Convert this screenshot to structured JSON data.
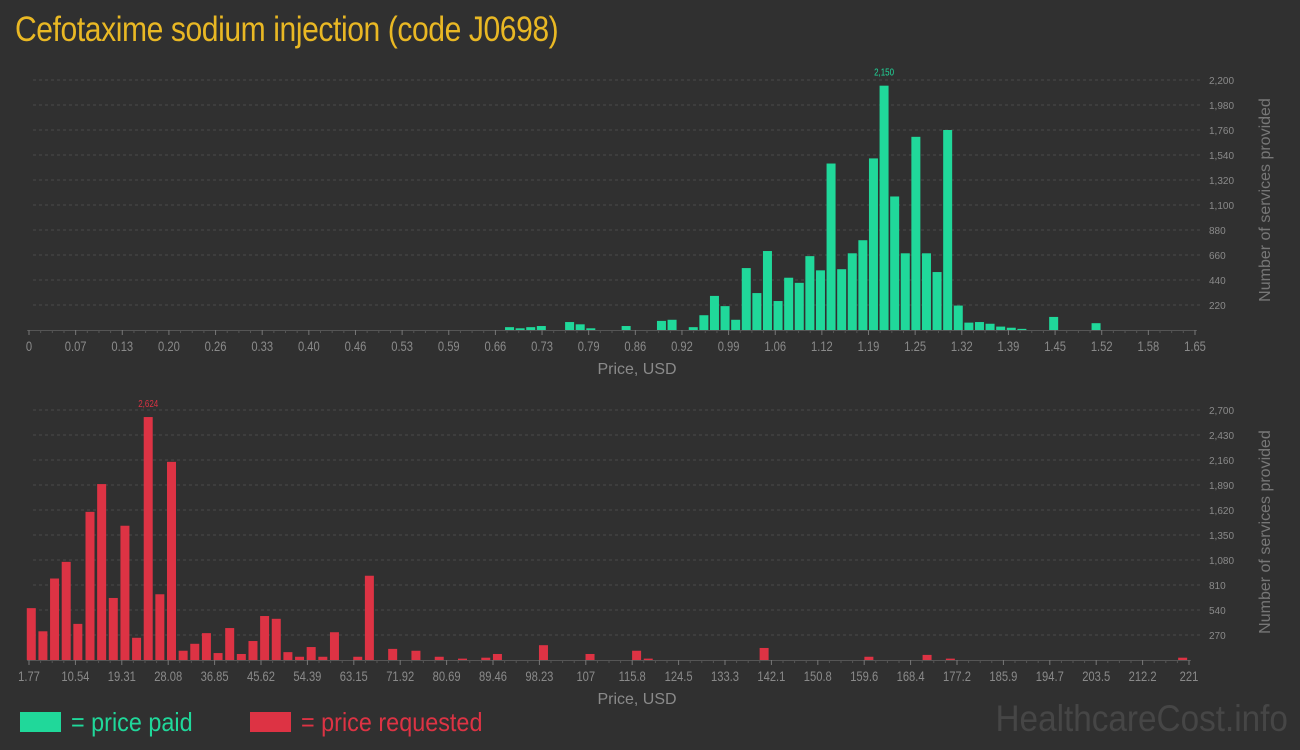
{
  "page": {
    "title": "Cefotaxime sodium injection (code J0698)",
    "watermark": "HealthcareCost.info"
  },
  "legend": {
    "paid": {
      "label": "= price paid",
      "color": "#20d89a"
    },
    "requested": {
      "label": "= price requested",
      "color": "#dd3344"
    }
  },
  "chart_data": [
    {
      "type": "bar",
      "title": "Price paid distribution",
      "xlabel": "Price, USD",
      "ylabel": "Number of services provided",
      "color": "#20d89a",
      "x_tick_labels": [
        "0",
        "0.07",
        "0.13",
        "0.20",
        "0.26",
        "0.33",
        "0.40",
        "0.46",
        "0.53",
        "0.59",
        "0.66",
        "0.73",
        "0.79",
        "0.86",
        "0.92",
        "0.99",
        "1.06",
        "1.12",
        "1.19",
        "1.25",
        "1.32",
        "1.39",
        "1.45",
        "1.52",
        "1.58",
        "1.65"
      ],
      "y_tick_labels": [
        "220",
        "440",
        "660",
        "880",
        "1,100",
        "1,320",
        "1,540",
        "1,760",
        "1,980",
        "2,200"
      ],
      "ylim": [
        0,
        2200
      ],
      "xlim": [
        0,
        1.65
      ],
      "grid": true,
      "peak_label": "2,150",
      "x": [
        0.68,
        0.695,
        0.71,
        0.725,
        0.765,
        0.78,
        0.795,
        0.845,
        0.895,
        0.91,
        0.94,
        0.955,
        0.97,
        0.985,
        1.0,
        1.015,
        1.03,
        1.045,
        1.06,
        1.075,
        1.09,
        1.105,
        1.12,
        1.135,
        1.15,
        1.165,
        1.18,
        1.195,
        1.21,
        1.225,
        1.24,
        1.255,
        1.27,
        1.285,
        1.3,
        1.315,
        1.33,
        1.345,
        1.36,
        1.375,
        1.39,
        1.405,
        1.42,
        1.45,
        1.51
      ],
      "values": [
        25,
        15,
        25,
        35,
        70,
        50,
        15,
        35,
        80,
        90,
        25,
        130,
        300,
        210,
        90,
        545,
        325,
        695,
        255,
        460,
        415,
        650,
        525,
        1465,
        535,
        675,
        790,
        1510,
        2150,
        1175,
        675,
        1700,
        675,
        510,
        1760,
        215,
        65,
        70,
        55,
        30,
        20,
        10,
        0,
        115,
        60
      ]
    },
    {
      "type": "bar",
      "title": "Price requested distribution",
      "xlabel": "Price, USD",
      "ylabel": "Number of services provided",
      "color": "#dd3344",
      "x_tick_labels": [
        "1.77",
        "10.54",
        "19.31",
        "28.08",
        "36.85",
        "45.62",
        "54.39",
        "63.15",
        "71.92",
        "80.69",
        "89.46",
        "98.23",
        "107",
        "115.8",
        "124.5",
        "133.3",
        "142.1",
        "150.8",
        "159.6",
        "168.4",
        "177.2",
        "185.9",
        "194.7",
        "203.5",
        "212.2",
        "221"
      ],
      "y_tick_labels": [
        "270",
        "540",
        "810",
        "1,080",
        "1,350",
        "1,620",
        "1,890",
        "2,160",
        "2,430",
        "2,700"
      ],
      "ylim": [
        0,
        2700
      ],
      "xlim": [
        1.77,
        221
      ],
      "grid": true,
      "peak_label": "2,624",
      "x": [
        2.2,
        4.4,
        6.6,
        8.8,
        11.0,
        13.3,
        15.5,
        17.7,
        19.9,
        22.1,
        24.3,
        26.5,
        28.7,
        30.9,
        33.1,
        35.3,
        37.5,
        39.7,
        41.9,
        44.1,
        46.3,
        48.5,
        50.7,
        52.9,
        55.1,
        57.3,
        59.5,
        63.9,
        66.1,
        70.5,
        74.9,
        79.3,
        83.7,
        88.1,
        90.3,
        99.0,
        107.8,
        116.6,
        118.8,
        140.7,
        160.5,
        171.5,
        175.9,
        219.8
      ],
      "values": [
        560,
        310,
        880,
        1060,
        390,
        1600,
        1900,
        670,
        1450,
        240,
        2624,
        710,
        2140,
        100,
        175,
        290,
        75,
        345,
        65,
        205,
        475,
        445,
        85,
        35,
        140,
        35,
        300,
        35,
        910,
        120,
        100,
        35,
        15,
        25,
        65,
        160,
        65,
        100,
        15,
        130,
        35,
        55,
        15,
        25
      ]
    }
  ]
}
